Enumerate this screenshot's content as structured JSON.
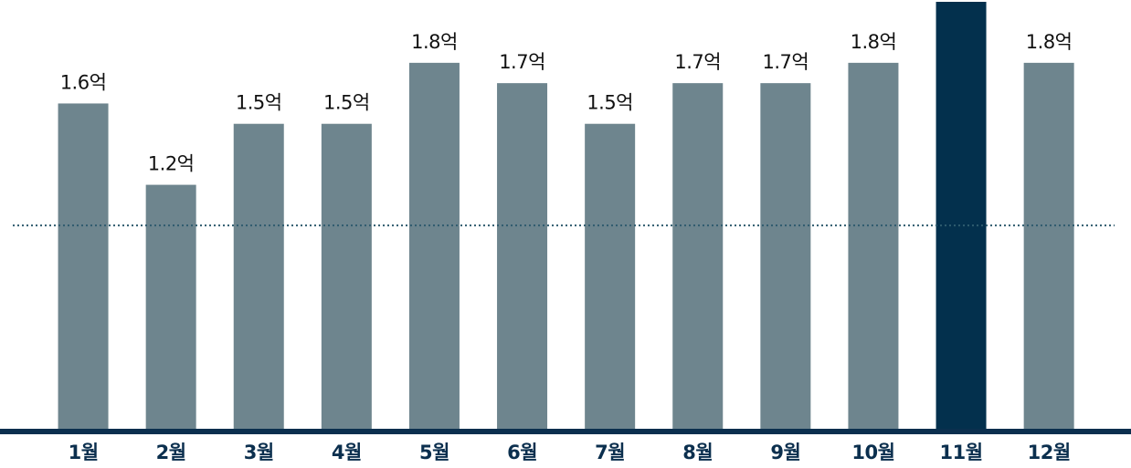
{
  "chart_data": {
    "type": "bar",
    "categories": [
      "1월",
      "2월",
      "3월",
      "4월",
      "5월",
      "6월",
      "7월",
      "8월",
      "9월",
      "10월",
      "11월",
      "12월"
    ],
    "values": [
      1.6,
      1.2,
      1.5,
      1.5,
      1.8,
      1.7,
      1.5,
      1.7,
      1.7,
      1.8,
      2.1,
      1.8
    ],
    "value_labels": [
      "1.6억",
      "1.2억",
      "1.5억",
      "1.5억",
      "1.8억",
      "1.7억",
      "1.5억",
      "1.7억",
      "1.7억",
      "1.8억",
      null,
      "1.8억"
    ],
    "colors": [
      "#6e858e",
      "#6e858e",
      "#6e858e",
      "#6e858e",
      "#6e858e",
      "#6e858e",
      "#6e858e",
      "#6e858e",
      "#6e858e",
      "#6e858e",
      "#03304d",
      "#6e858e"
    ],
    "ylim": [
      0,
      2.1
    ],
    "reference_line": 1.0,
    "reference_color": "#2f5b6e",
    "axis_color": "#0b2f4e"
  }
}
